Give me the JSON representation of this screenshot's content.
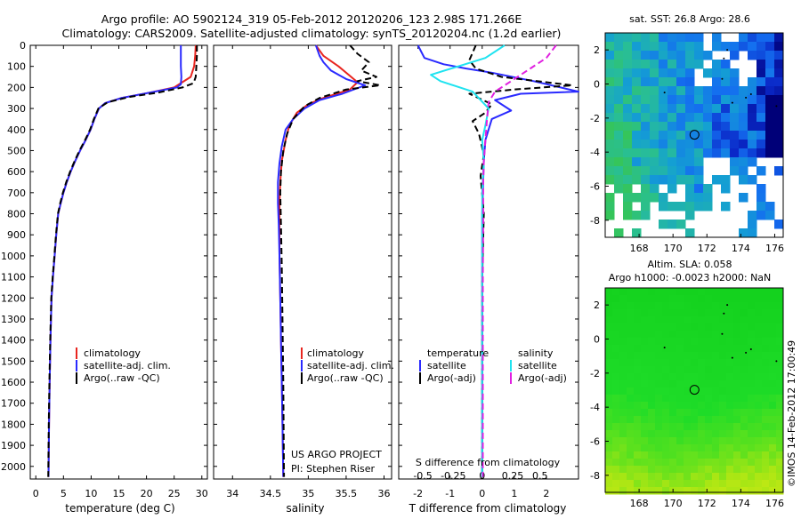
{
  "header": {
    "line1": "Argo profile: AO 5902124_319 05-Feb-2012 20120206_123 2.98S 171.266E",
    "line2": "Climatology: CARS2009. Satellite-adjusted climatology: synTS_20120204.nc (1.2d earlier)"
  },
  "colors": {
    "red": "#e8251f",
    "blue": "#2a2aff",
    "black": "#000000",
    "cyan": "#1fe3f0",
    "magenta": "#e020e0"
  },
  "depth_axis": {
    "ticks": [
      0,
      100,
      200,
      300,
      400,
      500,
      600,
      700,
      800,
      900,
      1000,
      1100,
      1200,
      1300,
      1400,
      1500,
      1600,
      1700,
      1800,
      1900,
      2000
    ]
  },
  "chart_data": [
    {
      "type": "line",
      "name": "temperature",
      "xlabel": "temperature (deg C)",
      "xlim": [
        -1,
        31
      ],
      "ylim": [
        0,
        2060
      ],
      "xticks": [
        0,
        5,
        10,
        15,
        20,
        25,
        30
      ],
      "legend": [
        "climatology",
        "satellite-adj. clim.",
        "Argo(..raw -QC)"
      ],
      "series": [
        {
          "name": "climatology",
          "color": "red",
          "x": [
            28.9,
            28.8,
            28.6,
            28.0,
            25.0,
            20.5,
            15.5,
            12.5,
            11.4,
            10.6,
            9.9,
            9.0,
            8.0,
            7.1,
            6.3,
            5.6,
            5.0,
            4.5,
            4.05,
            3.7,
            3.4,
            3.1,
            2.85,
            2.65,
            2.5,
            2.4,
            2.3
          ],
          "y": [
            0,
            50,
            100,
            150,
            200,
            225,
            250,
            275,
            300,
            350,
            400,
            450,
            500,
            550,
            600,
            650,
            700,
            750,
            800,
            900,
            1000,
            1100,
            1200,
            1400,
            1600,
            1800,
            2050
          ]
        },
        {
          "name": "satellite-adj. clim.",
          "color": "blue",
          "x": [
            26.2,
            26.2,
            26.2,
            26.3,
            26.2,
            25.5,
            20.5,
            15.5,
            12.5,
            11.4,
            10.6,
            9.9,
            9.0,
            8.0,
            7.1,
            6.3,
            5.6,
            5.0,
            4.5,
            4.05,
            3.7,
            3.4,
            3.1,
            2.85,
            2.65,
            2.5,
            2.4,
            2.3
          ],
          "y": [
            0,
            50,
            100,
            150,
            185,
            200,
            225,
            250,
            275,
            300,
            350,
            400,
            450,
            500,
            550,
            600,
            650,
            700,
            750,
            800,
            900,
            1000,
            1100,
            1200,
            1400,
            1600,
            1800,
            2050
          ]
        },
        {
          "name": "Argo(..raw -QC)",
          "color": "black",
          "x": [
            29.1,
            29.1,
            29.0,
            28.9,
            28.5,
            26.5,
            22.0,
            17.0,
            13.0,
            11.3,
            10.5,
            9.8,
            8.9,
            7.9,
            7.0,
            6.2,
            5.5,
            4.9,
            4.4,
            4.0,
            3.65,
            3.35,
            3.05,
            2.8,
            2.6,
            2.45,
            2.35,
            2.25
          ],
          "y": [
            0,
            50,
            100,
            150,
            180,
            200,
            225,
            245,
            270,
            300,
            350,
            400,
            450,
            500,
            550,
            600,
            650,
            700,
            750,
            800,
            900,
            1000,
            1100,
            1200,
            1400,
            1600,
            1800,
            2050
          ]
        }
      ]
    },
    {
      "type": "line",
      "name": "salinity",
      "xlabel": "salinity",
      "xlim": [
        33.75,
        36.1
      ],
      "ylim": [
        0,
        2060
      ],
      "xticks": [
        34,
        34.5,
        35,
        35.5,
        36
      ],
      "legend": [
        "climatology",
        "satellite-adj. clim.",
        "Argo(..raw -QC)"
      ],
      "annotation": [
        "US ARGO PROJECT",
        "PI: Stephen Riser"
      ],
      "series": [
        {
          "name": "climatology",
          "color": "red",
          "x": [
            35.1,
            35.2,
            35.4,
            35.65,
            35.55,
            35.2,
            35.0,
            34.85,
            34.75,
            34.7,
            34.65,
            34.63,
            34.62,
            34.62,
            34.62,
            34.63,
            34.64,
            34.65,
            34.66,
            34.67
          ],
          "y": [
            0,
            50,
            100,
            175,
            210,
            250,
            280,
            320,
            380,
            450,
            550,
            650,
            750,
            850,
            1000,
            1200,
            1400,
            1600,
            1800,
            2050
          ]
        },
        {
          "name": "satellite-adj. clim.",
          "color": "blue",
          "x": [
            35.1,
            35.15,
            35.2,
            35.3,
            35.5,
            35.75,
            35.45,
            35.15,
            34.95,
            34.8,
            34.7,
            34.65,
            34.62,
            34.6,
            34.6,
            34.61,
            34.62,
            34.63,
            34.64,
            34.65,
            34.66,
            34.67
          ],
          "y": [
            0,
            50,
            80,
            120,
            160,
            190,
            230,
            260,
            300,
            350,
            400,
            480,
            560,
            650,
            750,
            850,
            1000,
            1200,
            1400,
            1600,
            1800,
            2050
          ]
        },
        {
          "name": "Argo(..raw -QC)",
          "color": "black",
          "x": [
            35.55,
            35.65,
            35.8,
            35.7,
            35.9,
            35.65,
            35.95,
            35.5,
            35.15,
            34.95,
            34.8,
            34.72,
            34.67,
            34.64,
            34.63,
            34.64,
            34.65,
            34.66,
            34.67,
            34.68
          ],
          "y": [
            0,
            40,
            80,
            120,
            150,
            170,
            190,
            210,
            250,
            290,
            350,
            420,
            500,
            600,
            700,
            850,
            1050,
            1300,
            1600,
            2050
          ]
        }
      ]
    },
    {
      "type": "line",
      "name": "difference",
      "xlabel": "T difference from climatology",
      "xlabel_top": "S difference from climatology",
      "xlim": [
        -2.6,
        3.0
      ],
      "ylim": [
        0,
        2060
      ],
      "xticks": [
        -2,
        -1,
        0,
        1,
        2
      ],
      "xticks_top_labels": [
        "-0.5",
        "-0.25",
        "0",
        "0.25",
        "0.5"
      ],
      "legend_titles": [
        "temperature",
        "salinity"
      ],
      "legend": [
        "satellite",
        "Argo(-adj)",
        "satellite",
        "Argo(-adj)"
      ],
      "series": [
        {
          "name": "temperature satellite",
          "color": "blue",
          "x": [
            -2.0,
            -1.8,
            -1.2,
            -0.5,
            0.3,
            1.6,
            3.0,
            1.2,
            0.4,
            0.9,
            0.3,
            0.1,
            0.05,
            0.0,
            0.0,
            0.0,
            0.0
          ],
          "y": [
            0,
            60,
            90,
            110,
            130,
            170,
            220,
            230,
            260,
            310,
            350,
            450,
            550,
            800,
            1200,
            1600,
            2050
          ]
        },
        {
          "name": "temperature Argo(-adj)",
          "color": "black",
          "x": [
            -0.2,
            -0.4,
            -0.2,
            0.6,
            2.8,
            1.0,
            -0.4,
            0.3,
            0.1,
            -0.3,
            -0.1,
            0.05,
            -0.05,
            0.05,
            0.0,
            0.0,
            0.0
          ],
          "y": [
            0,
            70,
            110,
            150,
            190,
            210,
            230,
            280,
            320,
            360,
            420,
            520,
            620,
            800,
            1100,
            1500,
            2050
          ]
        },
        {
          "name": "salinity satellite",
          "color": "cyan",
          "x": [
            0.7,
            0.1,
            -1.6,
            -1.3,
            -0.3,
            0.2,
            0.1,
            0.0,
            0.05,
            0.0,
            0.0,
            0.0
          ],
          "y": [
            0,
            60,
            140,
            170,
            220,
            300,
            380,
            450,
            550,
            700,
            1200,
            2050
          ]
        },
        {
          "name": "salinity Argo(-adj)",
          "color": "magenta",
          "x": [
            2.3,
            2.0,
            1.3,
            0.9,
            0.4,
            0.2,
            0.15,
            0.1,
            0.05,
            0.03,
            0.03,
            0.02,
            0.02
          ],
          "y": [
            0,
            60,
            130,
            170,
            220,
            270,
            350,
            450,
            550,
            650,
            850,
            1100,
            2050
          ]
        }
      ]
    }
  ],
  "maps": {
    "sst": {
      "title": "sat. SST: 26.8 Argo: 28.6",
      "xticks": [
        "168",
        "170",
        "172",
        "174",
        "176"
      ],
      "yticks": [
        "2",
        "0",
        "-2",
        "-4",
        "-6",
        "-8"
      ]
    },
    "sla": {
      "title1": "Altim. SLA: 0.058",
      "title2": "Argo h1000: -0.0023 h2000: NaN",
      "xticks": [
        "168",
        "170",
        "172",
        "174",
        "176"
      ],
      "yticks": [
        "2",
        "0",
        "-2",
        "-4",
        "-6",
        "-8"
      ]
    },
    "argo_position": {
      "lon": 171.266,
      "lat": -2.98
    }
  },
  "footer": {
    "watermark": "©IMOS 14-Feb-2012 17:00:49"
  }
}
